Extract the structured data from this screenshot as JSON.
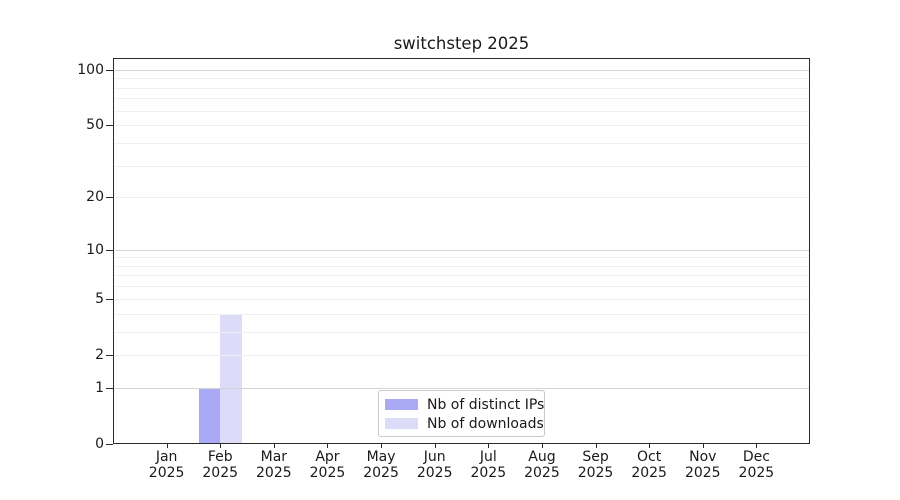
{
  "chart_data": {
    "type": "bar",
    "title": "switchstep 2025",
    "categories": [
      "Jan",
      "Feb",
      "Mar",
      "Apr",
      "May",
      "Jun",
      "Jul",
      "Aug",
      "Sep",
      "Oct",
      "Nov",
      "Dec"
    ],
    "year_label": "2025",
    "series": [
      {
        "name": "Nb of distinct IPs",
        "color": "#a9a9f5",
        "values": [
          0,
          1,
          0,
          0,
          0,
          0,
          0,
          0,
          0,
          0,
          0,
          0
        ]
      },
      {
        "name": "Nb of downloads",
        "color": "#dcdcf8",
        "values": [
          0,
          4,
          0,
          0,
          0,
          0,
          0,
          0,
          0,
          0,
          0,
          0
        ]
      }
    ],
    "y_scale": "log1p",
    "y_ticks": [
      0,
      1,
      2,
      5,
      10,
      20,
      50,
      100
    ],
    "y_major_grid": [
      1,
      10,
      100
    ],
    "y_minor_grid": [
      2,
      3,
      4,
      5,
      6,
      7,
      8,
      9,
      20,
      30,
      40,
      50,
      60,
      70,
      80,
      90
    ],
    "ylim": [
      0,
      116
    ],
    "grid": "horizontal",
    "legend_position": "lower center"
  },
  "colors": {
    "major_grid": "#d4d4d4",
    "minor_grid": "#f0f0f0",
    "spine": "#2a2a2a",
    "text": "#1a1a1a",
    "background": "#ffffff"
  }
}
